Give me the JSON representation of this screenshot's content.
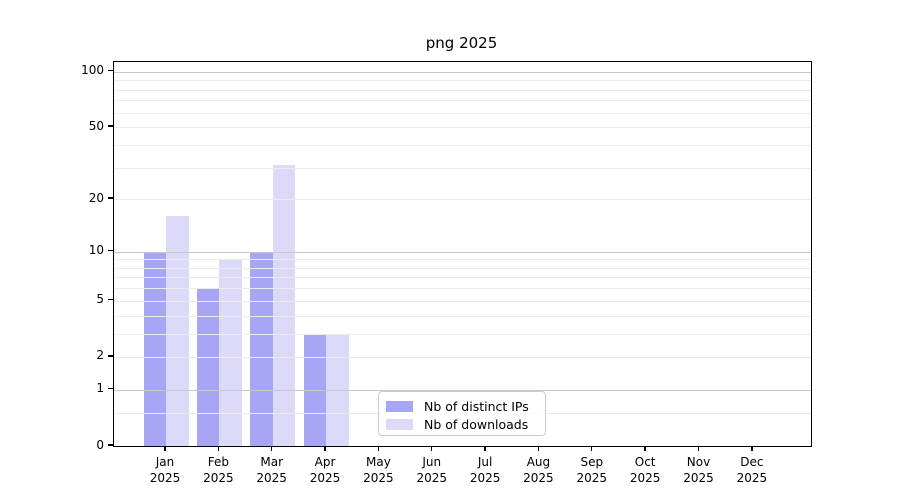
{
  "chart_data": {
    "type": "bar",
    "title": "png 2025",
    "year": "2025",
    "categories": [
      "Jan",
      "Feb",
      "Mar",
      "Apr",
      "May",
      "Jun",
      "Jul",
      "Aug",
      "Sep",
      "Oct",
      "Nov",
      "Dec"
    ],
    "series": [
      {
        "name": "Nb of distinct IPs",
        "color": "#a6a6f5",
        "values": [
          10,
          6,
          10,
          3,
          0,
          0,
          0,
          0,
          0,
          0,
          0,
          0
        ]
      },
      {
        "name": "Nb of downloads",
        "color": "#dbdbf9",
        "values": [
          16,
          9,
          31,
          3,
          0,
          0,
          0,
          0,
          0,
          0,
          0,
          0
        ]
      }
    ],
    "y_axis": {
      "scale": "log10(value+1)",
      "tick_labels": [
        0,
        1,
        2,
        5,
        10,
        20,
        50,
        100
      ],
      "major_gridlines": [
        1,
        10,
        100
      ],
      "minor_gridlines": [
        0.5,
        2,
        3,
        4,
        5,
        6,
        7,
        8,
        9,
        20,
        30,
        40,
        50,
        60,
        70,
        80,
        90
      ],
      "range": [
        0,
        115
      ]
    },
    "legend": {
      "position": "lower center"
    },
    "grid": true,
    "colors": {
      "major_gridline": "#c8c8c8",
      "minor_gridline": "#ebebeb",
      "spine": "#000000",
      "background": "#ffffff"
    }
  }
}
